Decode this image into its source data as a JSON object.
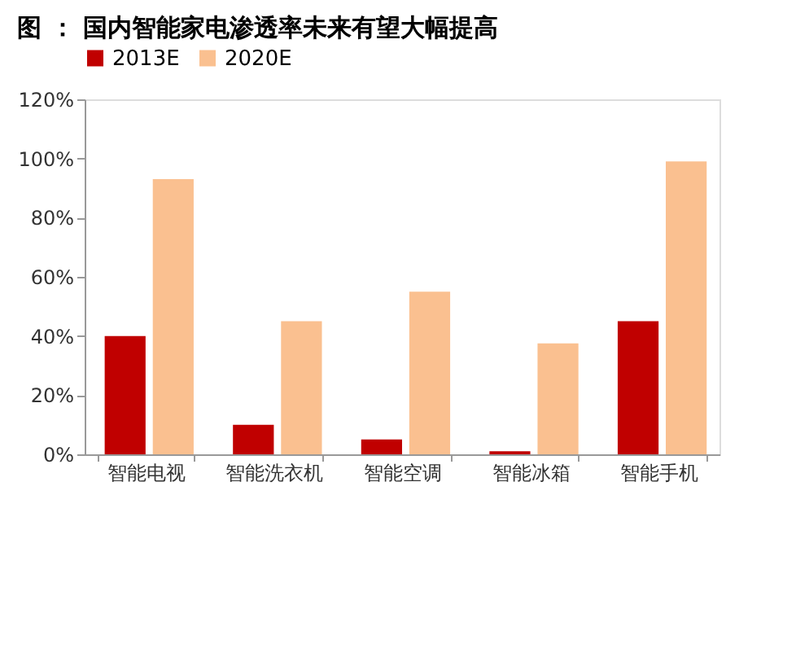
{
  "chart_data": {
    "type": "bar",
    "title": "图 ： 国内智能家电渗透率未来有望大幅提高",
    "categories": [
      "智能电视",
      "智能洗衣机",
      "智能空调",
      "智能冰箱",
      "智能手机"
    ],
    "series": [
      {
        "name": "2013E",
        "color": "#c00000",
        "values": [
          40,
          10,
          5,
          1,
          45
        ]
      },
      {
        "name": "2020E",
        "color": "#fac090",
        "values": [
          93,
          45,
          55,
          37.5,
          99
        ]
      }
    ],
    "ylim": [
      0,
      120
    ],
    "yticks": [
      {
        "value": 0,
        "label": "0%"
      },
      {
        "value": 20,
        "label": "20%"
      },
      {
        "value": 40,
        "label": "40%"
      },
      {
        "value": 60,
        "label": "60%"
      },
      {
        "value": 80,
        "label": "80%"
      },
      {
        "value": 100,
        "label": "100%"
      },
      {
        "value": 120,
        "label": "120%"
      }
    ],
    "grid": false,
    "legend": "top"
  }
}
